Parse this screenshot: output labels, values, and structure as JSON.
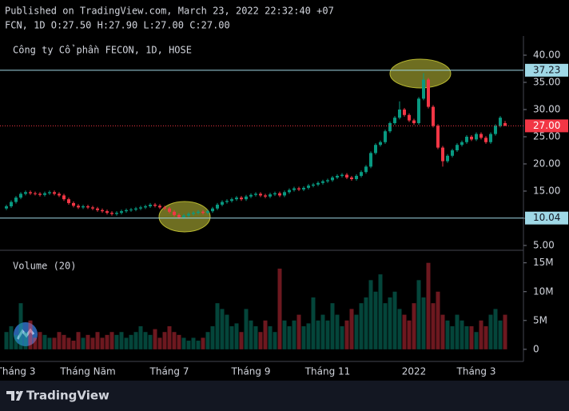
{
  "header": {
    "published": "Published on TradingView.com, March 23, 2022 22:32:40 +07",
    "ohlc": "FCN, 1D O:27.50 H:27.90 L:27.00 C:27.00"
  },
  "brand": "TradingView",
  "chart_data": [
    {
      "type": "candlestick",
      "title": "Công ty Cổ phần FECON, 1D, HOSE",
      "up_color": "#089981",
      "down_color": "#f23645",
      "categories": [
        null,
        null,
        "Tháng 3",
        null,
        null,
        null,
        null,
        null,
        null,
        null,
        null,
        null,
        null,
        null,
        null,
        null,
        null,
        "Tháng Năm",
        null,
        null,
        null,
        null,
        null,
        null,
        null,
        null,
        null,
        null,
        null,
        null,
        null,
        null,
        null,
        null,
        "Tháng 7",
        null,
        null,
        null,
        null,
        null,
        null,
        null,
        null,
        null,
        null,
        null,
        null,
        null,
        null,
        null,
        null,
        "Tháng 9",
        null,
        null,
        null,
        null,
        null,
        null,
        null,
        null,
        null,
        null,
        null,
        null,
        null,
        null,
        null,
        "Tháng 11",
        null,
        null,
        null,
        null,
        null,
        null,
        null,
        null,
        null,
        null,
        null,
        null,
        null,
        null,
        null,
        null,
        null,
        "2022",
        null,
        null,
        null,
        null,
        null,
        null,
        null,
        null,
        null,
        null,
        null,
        null,
        "Tháng 3",
        null,
        null,
        null,
        null,
        null,
        null
      ],
      "open": [
        11.8,
        12.2,
        13,
        13.8,
        14.5,
        14.8,
        14.6,
        14.5,
        14.3,
        14.6,
        14.8,
        14.5,
        14.2,
        13.5,
        12.8,
        12.3,
        12,
        12.2,
        12,
        11.8,
        11.5,
        11.3,
        11,
        10.8,
        11,
        11.3,
        11.5,
        11.6,
        11.8,
        12,
        12.2,
        12.5,
        12.3,
        12,
        11.8,
        11.2,
        10.6,
        10.2,
        10.5,
        10.8,
        11,
        11.2,
        11,
        11.3,
        11.8,
        12.5,
        13,
        13.2,
        13.5,
        13.8,
        13.5,
        14,
        14.3,
        14.5,
        14.2,
        14,
        14.4,
        14.6,
        14.2,
        14.8,
        15.2,
        15.5,
        15.3,
        15.6,
        16,
        16.2,
        16.5,
        16.8,
        17,
        17.5,
        17.8,
        18,
        17.5,
        17.2,
        17.8,
        18.5,
        19.5,
        22,
        23.5,
        24,
        26,
        27.5,
        28.5,
        30,
        29,
        28,
        27.5,
        32,
        35.5,
        30.5,
        27,
        23,
        20.5,
        21.5,
        22.5,
        23.5,
        24,
        25,
        24.5,
        25.5,
        24.8,
        24,
        25.5,
        27,
        27.5
      ],
      "high": [
        12.5,
        13.3,
        14.1,
        14.8,
        15.1,
        15.1,
        14.9,
        14.8,
        14.9,
        15.1,
        15.1,
        14.8,
        14.5,
        13.8,
        13.1,
        12.6,
        12.5,
        12.5,
        12.3,
        12.1,
        11.8,
        11.6,
        11.3,
        11.3,
        11.6,
        11.8,
        11.9,
        12.1,
        12.3,
        12.5,
        12.8,
        12.8,
        12.6,
        12.3,
        12.1,
        11.5,
        10.9,
        10.8,
        11.1,
        11.3,
        11.5,
        11.5,
        11.6,
        12.1,
        12.8,
        13.3,
        13.5,
        13.8,
        14.1,
        14.1,
        14.3,
        14.6,
        14.8,
        14.8,
        14.5,
        14.7,
        14.9,
        14.9,
        15.1,
        15.5,
        15.8,
        15.8,
        15.9,
        16.3,
        16.5,
        16.8,
        17.1,
        17.3,
        17.8,
        18.1,
        18.3,
        18.3,
        17.8,
        18.1,
        18.8,
        19.8,
        22.3,
        23.8,
        24.3,
        26.3,
        27.8,
        28.8,
        31.5,
        30.3,
        29.3,
        28.3,
        32.3,
        36.7,
        35.8,
        30.8,
        27.3,
        23.3,
        21.8,
        22.8,
        23.8,
        24.3,
        25.3,
        25.3,
        25.8,
        25.8,
        25.1,
        25.8,
        27.3,
        28.8,
        27.9
      ],
      "low": [
        11.5,
        11.9,
        12.7,
        13.5,
        14.2,
        14.3,
        14.2,
        14,
        14,
        14.3,
        14.2,
        13.9,
        13.2,
        12.5,
        12,
        11.7,
        11.7,
        11.7,
        11.5,
        11.2,
        11,
        10.7,
        10.5,
        10.5,
        10.7,
        11,
        11.2,
        11.3,
        11.5,
        11.7,
        11.9,
        12,
        11.7,
        11.5,
        10.9,
        10.3,
        9.9,
        9.9,
        10.2,
        10.5,
        10.7,
        10.7,
        10.7,
        11,
        11.5,
        12.2,
        12.7,
        12.9,
        13.2,
        13.2,
        13.2,
        13.7,
        14,
        13.9,
        13.7,
        13.7,
        14.1,
        13.9,
        13.9,
        14.5,
        14.9,
        15,
        15,
        15.3,
        15.7,
        15.9,
        16.2,
        16.5,
        16.7,
        17.2,
        17.5,
        17.2,
        16.9,
        16.9,
        17.5,
        18.2,
        19.2,
        21.7,
        23.2,
        23.7,
        25.7,
        27.2,
        28.2,
        28.7,
        27.7,
        27.2,
        27.2,
        31.7,
        30.2,
        26.7,
        22.7,
        19.5,
        20.2,
        21.2,
        22.2,
        23.2,
        23.7,
        24.2,
        24.2,
        24.5,
        23.7,
        23.7,
        25.2,
        26.7,
        27
      ],
      "close": [
        12.2,
        13,
        13.8,
        14.5,
        14.8,
        14.6,
        14.5,
        14.3,
        14.6,
        14.8,
        14.5,
        14.2,
        13.5,
        12.8,
        12.3,
        12,
        12.2,
        12,
        11.8,
        11.5,
        11.3,
        11,
        10.8,
        11,
        11.3,
        11.5,
        11.6,
        11.8,
        12,
        12.2,
        12.5,
        12.3,
        12,
        11.8,
        11.2,
        10.6,
        10.2,
        10.5,
        10.8,
        11,
        11.2,
        11,
        11.3,
        11.8,
        12.5,
        13,
        13.2,
        13.5,
        13.8,
        13.5,
        14,
        14.3,
        14.5,
        14.2,
        14,
        14.4,
        14.6,
        14.2,
        14.8,
        15.2,
        15.5,
        15.3,
        15.6,
        16,
        16.2,
        16.5,
        16.8,
        17,
        17.5,
        17.8,
        18,
        17.5,
        17.2,
        17.8,
        18.5,
        19.5,
        22,
        23.5,
        24,
        26,
        27.5,
        28.5,
        30,
        29,
        28,
        27.5,
        32,
        35.5,
        30.5,
        27,
        23,
        20.5,
        21.5,
        22.5,
        23.5,
        24,
        25,
        24.5,
        25.5,
        24.8,
        24,
        25.5,
        27,
        28.5,
        27
      ],
      "ylim": [
        4.26,
        43.53
      ],
      "yticks": [
        {
          "value": 5,
          "label": "5.00"
        },
        {
          "value": 10,
          "label": "10.00"
        },
        {
          "value": 15,
          "label": "15.00"
        },
        {
          "value": 20,
          "label": "20.00"
        },
        {
          "value": 25,
          "label": "25.00"
        },
        {
          "value": 30,
          "label": "30.00"
        },
        {
          "value": 35,
          "label": "35.00"
        },
        {
          "value": 40,
          "label": "40.00"
        }
      ],
      "price_lines": [
        {
          "value": 37.23,
          "label": "37.23",
          "color": "#9fd8e6",
          "style": "solid"
        },
        {
          "value": 27,
          "label": "27.00",
          "color": "#f23645",
          "style": "dotted"
        },
        {
          "value": 10.04,
          "label": "10.04",
          "color": "#9fd8e6",
          "style": "solid"
        }
      ]
    },
    {
      "type": "bar",
      "title": "Volume (20)",
      "values": [
        3,
        4,
        2.5,
        8,
        3,
        5,
        2,
        3,
        2.5,
        2,
        2,
        3,
        2.5,
        2,
        1.5,
        3,
        2,
        2.5,
        2,
        3,
        2,
        2.5,
        3,
        2.5,
        3,
        2,
        2.5,
        3,
        4,
        3,
        2.5,
        3.5,
        2,
        3,
        4,
        3,
        2.5,
        2,
        1.5,
        2,
        1.5,
        2,
        3,
        4,
        8,
        7,
        6,
        4,
        4.5,
        3,
        7,
        5,
        4,
        3,
        5,
        4,
        3,
        14,
        5,
        4,
        5,
        6,
        4,
        4.5,
        9,
        5,
        6,
        5,
        8,
        6,
        4,
        5,
        7,
        6,
        8,
        9,
        12,
        10,
        13,
        8,
        9,
        10,
        7,
        6,
        5,
        8,
        12,
        9,
        15,
        8,
        10,
        6,
        5,
        4,
        6,
        5,
        4,
        4,
        3,
        5,
        4,
        6,
        7,
        5,
        6
      ],
      "ylim": [
        -2.1,
        16.9
      ],
      "yticks": [
        0,
        {
          "value": 5,
          "label": "5M"
        },
        {
          "value": 10,
          "label": "10M"
        },
        {
          "value": 15,
          "label": "15M"
        }
      ]
    }
  ]
}
